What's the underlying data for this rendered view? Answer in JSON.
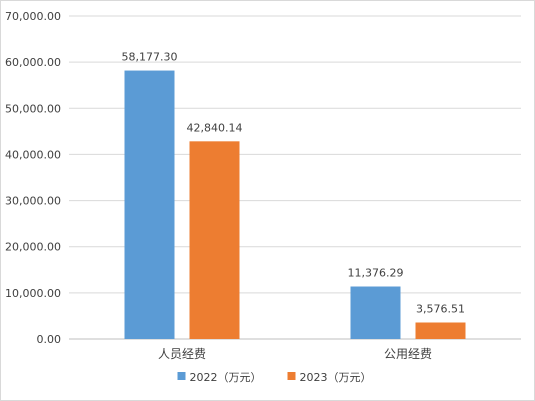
{
  "chart_data": {
    "type": "bar",
    "categories": [
      "人员经费",
      "公用经费"
    ],
    "series": [
      {
        "name": "2022（万元）",
        "values": [
          58177.3,
          11376.29
        ],
        "labels": [
          "58,177.30",
          "11,376.29"
        ],
        "color": "#5b9bd5"
      },
      {
        "name": "2023（万元）",
        "values": [
          42840.14,
          3576.51
        ],
        "labels": [
          "42,840.14",
          "3,576.51"
        ],
        "color": "#ed7d31"
      }
    ],
    "ylim": [
      0,
      70000
    ],
    "yticks": [
      0,
      10000,
      20000,
      30000,
      40000,
      50000,
      60000,
      70000
    ],
    "ytick_labels": [
      "0.00",
      "10,000.00",
      "20,000.00",
      "30,000.00",
      "40,000.00",
      "50,000.00",
      "60,000.00",
      "70,000.00"
    ],
    "grid": true,
    "legend_position": "bottom"
  }
}
